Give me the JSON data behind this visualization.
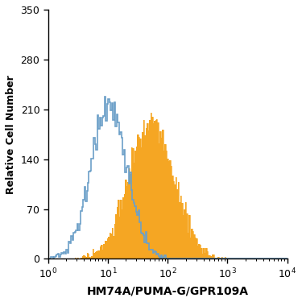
{
  "title": "",
  "xlabel": "HM74A/PUMA-G/GPR109A",
  "ylabel": "Relative Cell Number",
  "xlim": [
    1,
    10000
  ],
  "ylim": [
    0,
    350
  ],
  "yticks": [
    0,
    70,
    140,
    210,
    280,
    350
  ],
  "isotype_color": "#6ca0c8",
  "isotype_peak_y": 228,
  "isotype_log_mean": 1.02,
  "isotype_log_std": 0.3,
  "antibody_color": "#f5a623",
  "antibody_peak_y": 205,
  "antibody_log_mean": 1.72,
  "antibody_log_std": 0.38,
  "background_color": "white",
  "n_samples": 9000,
  "n_bins": 200,
  "spike_height": 175
}
